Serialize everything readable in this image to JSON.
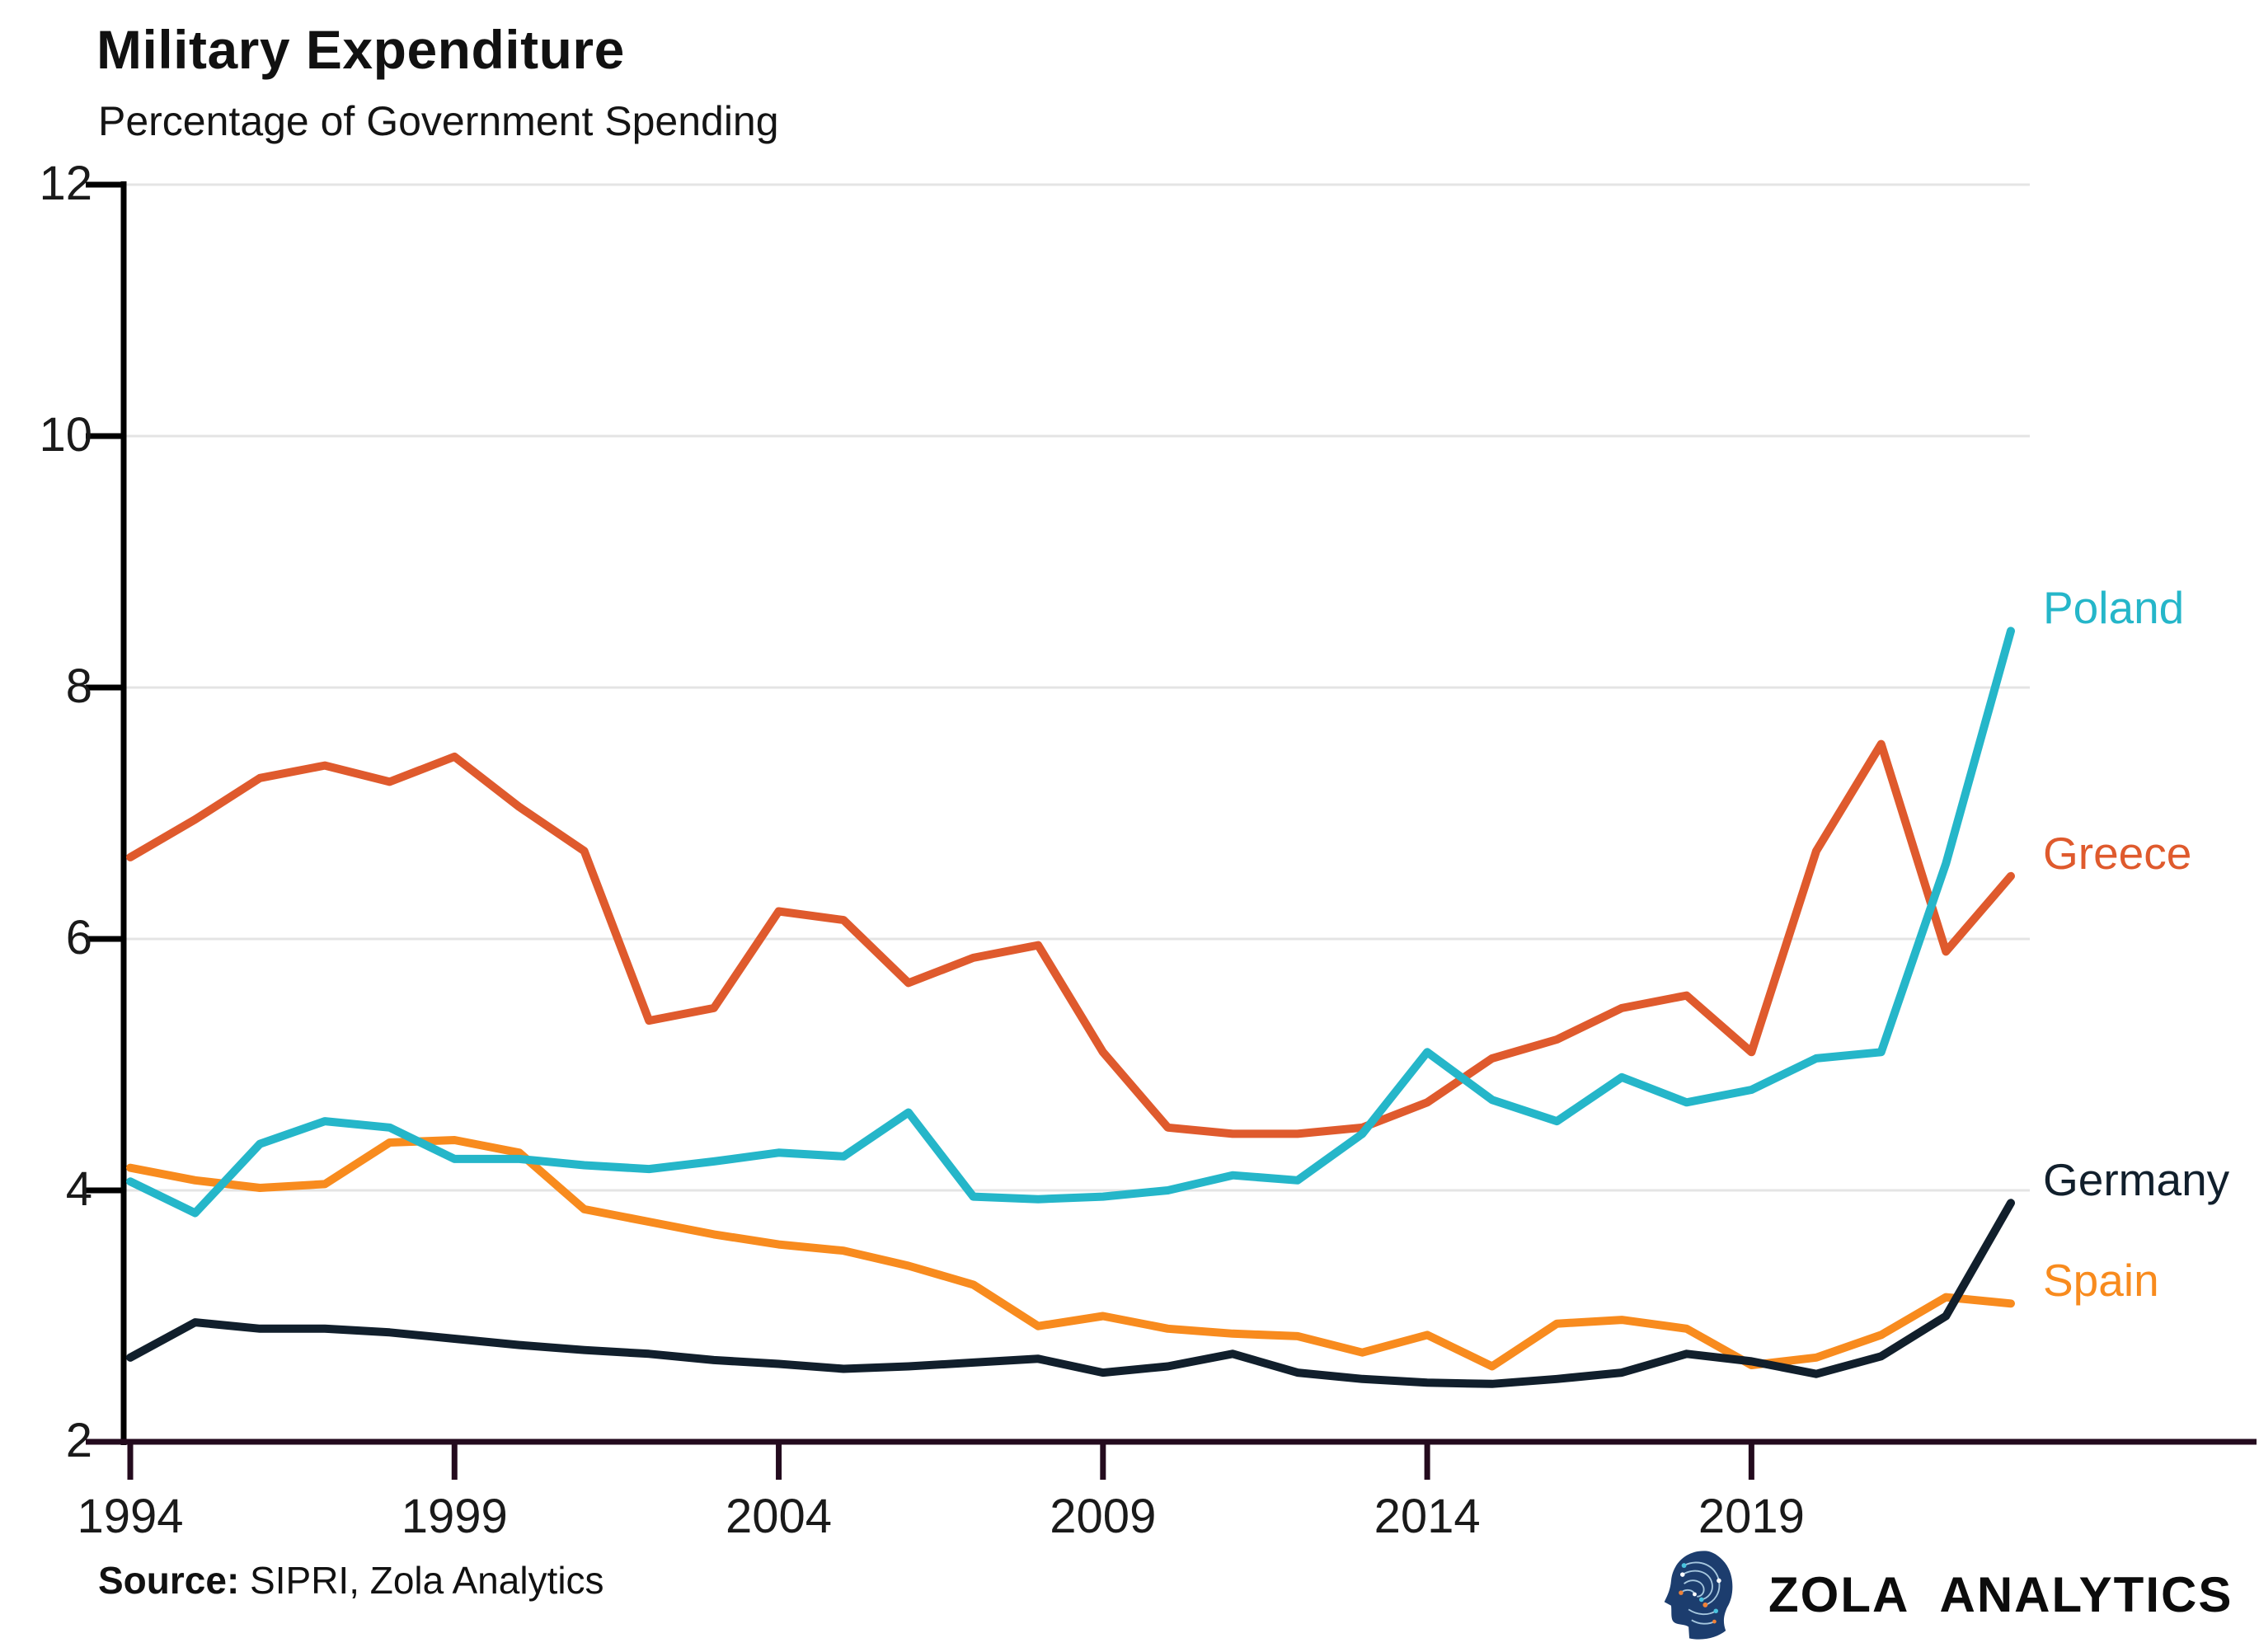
{
  "header": {
    "title": "Military Expenditure",
    "subtitle": "Percentage of Government Spending"
  },
  "footer": {
    "source_label": "Source:",
    "source_text": " SIPRI, Zola Analytics",
    "brand": "ZOLA ANALYTICS"
  },
  "colors": {
    "poland": "#25b6c9",
    "greece": "#df5a2d",
    "germany": "#111f2c",
    "spain": "#f88b1e",
    "grid": "#e4e4e4",
    "y_axis": "#000000",
    "x_axis": "#240b1e",
    "text": "#1a1a1a"
  },
  "chart_data": {
    "type": "line",
    "title": "Military Expenditure",
    "subtitle": "Percentage of Government Spending",
    "xlabel": "",
    "ylabel": "Percentage of Government Spending",
    "xlim": [
      1994,
      2023
    ],
    "ylim": [
      2,
      12
    ],
    "grid": "horizontal",
    "legend_position": "end-of-line labels, right margin",
    "x": [
      1994,
      1995,
      1996,
      1997,
      1998,
      1999,
      2000,
      2001,
      2002,
      2003,
      2004,
      2005,
      2006,
      2007,
      2008,
      2009,
      2010,
      2011,
      2012,
      2013,
      2014,
      2015,
      2016,
      2017,
      2018,
      2019,
      2020,
      2021,
      2022,
      2023
    ],
    "x_ticks": [
      1994,
      1999,
      2004,
      2009,
      2014,
      2019
    ],
    "x_tick_labels": [
      "1994",
      "1999",
      "2004",
      "2009",
      "2014",
      "2019"
    ],
    "y_ticks": [
      2,
      4,
      6,
      8,
      10,
      12
    ],
    "y_tick_labels": [
      "2",
      "4",
      "6",
      "8",
      "10",
      "12"
    ],
    "series": [
      {
        "name": "Greece",
        "color": "#df5a2d",
        "values": [
          6.65,
          6.95,
          7.28,
          7.38,
          7.25,
          7.45,
          7.05,
          6.7,
          5.35,
          5.45,
          6.22,
          6.15,
          5.65,
          5.85,
          5.95,
          5.1,
          4.5,
          4.45,
          4.45,
          4.5,
          4.7,
          5.05,
          5.2,
          5.45,
          5.55,
          5.1,
          6.7,
          7.55,
          5.9,
          6.5
        ]
      },
      {
        "name": "Spain",
        "color": "#f88b1e",
        "values": [
          4.18,
          4.08,
          4.02,
          4.05,
          4.38,
          4.4,
          4.3,
          3.85,
          3.75,
          3.65,
          3.57,
          3.52,
          3.4,
          3.25,
          2.92,
          3.0,
          2.9,
          2.86,
          2.84,
          2.71,
          2.85,
          2.6,
          2.94,
          2.97,
          2.9,
          2.61,
          2.67,
          2.85,
          3.15,
          3.1
        ]
      },
      {
        "name": "Poland",
        "color": "#25b6c9",
        "values": [
          4.07,
          3.82,
          4.37,
          4.55,
          4.5,
          4.25,
          4.25,
          4.2,
          4.17,
          4.23,
          4.3,
          4.27,
          4.62,
          3.95,
          3.93,
          3.95,
          4.0,
          4.12,
          4.08,
          4.45,
          5.1,
          4.72,
          4.55,
          4.9,
          4.7,
          4.8,
          5.05,
          5.1,
          6.6,
          8.45
        ]
      },
      {
        "name": "Germany",
        "color": "#111f2c",
        "values": [
          2.67,
          2.95,
          2.9,
          2.9,
          2.87,
          2.82,
          2.77,
          2.73,
          2.7,
          2.65,
          2.62,
          2.58,
          2.6,
          2.63,
          2.66,
          2.55,
          2.6,
          2.7,
          2.55,
          2.5,
          2.47,
          2.46,
          2.5,
          2.55,
          2.7,
          2.64,
          2.54,
          2.68,
          3.0,
          3.9
        ]
      }
    ]
  }
}
